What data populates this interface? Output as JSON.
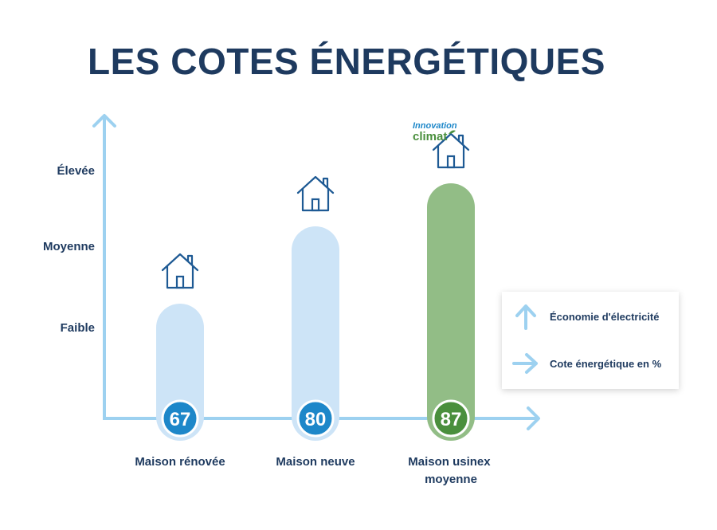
{
  "title": "LES COTES ÉNERGÉTIQUES",
  "chart_data": {
    "type": "bar",
    "categories": [
      "Maison rénovée",
      "Maison neuve",
      "Maison usinex moyenne"
    ],
    "values": [
      67,
      80,
      87
    ],
    "y_tick_labels": [
      "Faible",
      "Moyenne",
      "Élevée"
    ],
    "grid": false,
    "legend_position": "right",
    "colors": {
      "light_bar": "#cde4f7",
      "green_bar": "#92bd86",
      "blue_badge": "#1d87c9",
      "green_badge": "#4a8f3d",
      "axis": "#9dd1f0",
      "text": "#1e3a5f"
    }
  },
  "legend": {
    "items": [
      {
        "label": "Économie d'électricité",
        "icon": "arrow-up-icon"
      },
      {
        "label": "Cote énergétique en %",
        "icon": "arrow-right-icon"
      }
    ]
  },
  "badge": {
    "line1": "Innovation",
    "line2": "climat"
  }
}
